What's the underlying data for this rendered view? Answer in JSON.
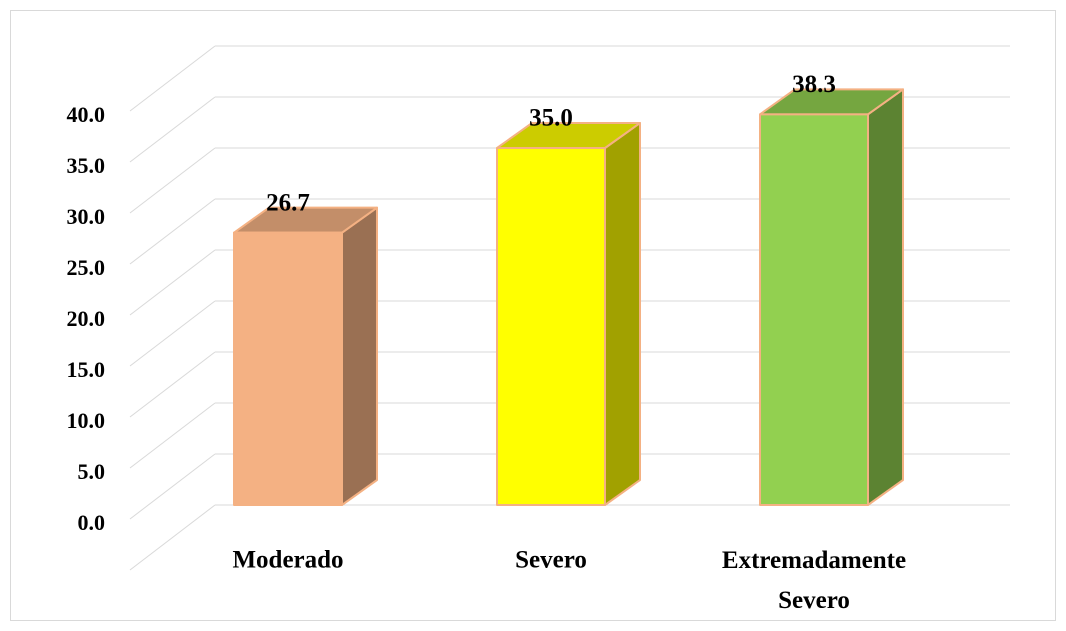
{
  "chart_data": {
    "type": "bar3d",
    "categories": [
      "Moderado",
      "Severo",
      "Extremadamente Severo"
    ],
    "values": [
      26.7,
      35.0,
      38.3
    ],
    "value_labels": [
      "26.7",
      "35.0",
      "38.3"
    ],
    "colors": [
      "#f4b183",
      "#ffff00",
      "#92d050"
    ],
    "ylim": [
      0,
      45
    ],
    "yticks": [
      {
        "value": 0,
        "label": "0.0"
      },
      {
        "value": 5,
        "label": "5.0"
      },
      {
        "value": 10,
        "label": "10.0"
      },
      {
        "value": 15,
        "label": "15.0"
      },
      {
        "value": 20,
        "label": "20.0"
      },
      {
        "value": 25,
        "label": "25.0"
      },
      {
        "value": 30,
        "label": "30.0"
      },
      {
        "value": 35,
        "label": "35.0"
      },
      {
        "value": 40,
        "label": "40.0"
      }
    ],
    "grid": true
  }
}
